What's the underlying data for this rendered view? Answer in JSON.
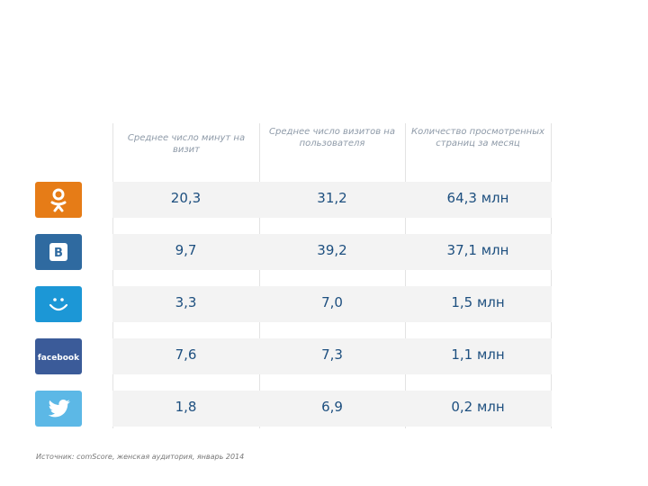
{
  "headers": {
    "avg_minutes": "Среднее число минут на визит",
    "avg_visits": "Среднее число визитов на пользователя",
    "page_views": "Количество просмотренных страниц за месяц"
  },
  "rows": [
    {
      "network": "Одноклассники",
      "icon": "odnoklassniki-icon",
      "color": "#E67C17",
      "avg_minutes": "20,3",
      "avg_visits": "31,2",
      "page_views": "64,3 млн"
    },
    {
      "network": "ВКонтакте",
      "icon": "vkontakte-icon",
      "color": "#2F6AA0",
      "avg_minutes": "9,7",
      "avg_visits": "39,2",
      "page_views": "37,1 млн"
    },
    {
      "network": "Мой Мир",
      "icon": "moi-mir-icon",
      "color": "#1C97D6",
      "avg_minutes": "3,3",
      "avg_visits": "7,0",
      "page_views": "1,5 млн"
    },
    {
      "network": "Facebook",
      "icon": "facebook-icon",
      "color": "#3B5B99",
      "logo_text": "facebook",
      "avg_minutes": "7,6",
      "avg_visits": "7,3",
      "page_views": "1,1 млн"
    },
    {
      "network": "Twitter",
      "icon": "twitter-icon",
      "color": "#5CB8E6",
      "avg_minutes": "1,8",
      "avg_visits": "6,9",
      "page_views": "0,2 млн"
    }
  ],
  "source": "Источник: comScore, женская аудитория, январь 2014"
}
